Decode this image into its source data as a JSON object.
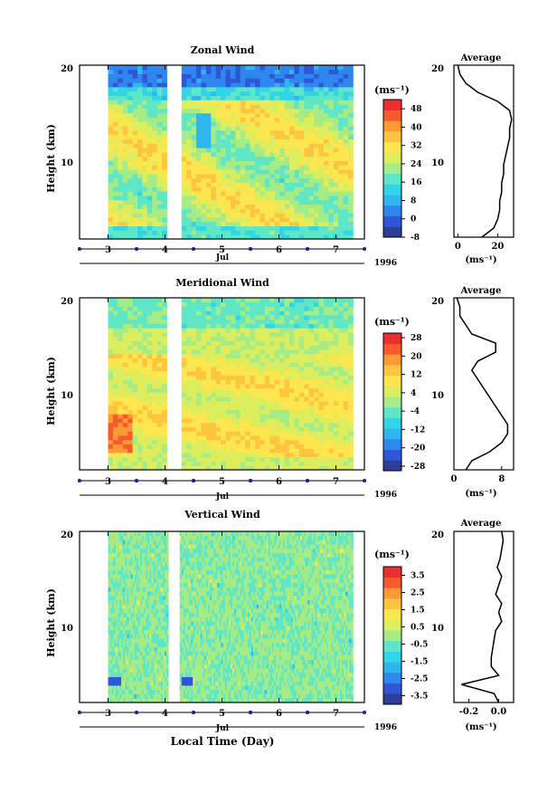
{
  "figure": {
    "xlabel": "Local Time (Day)",
    "month_label": "Jul",
    "year_label": "1996",
    "unit_label": "(ms⁻¹)",
    "ylabel": "Height (km)",
    "average_title": "Average",
    "average_unit": "(ms⁻¹)"
  },
  "colors": {
    "scale": [
      "#2e3e96",
      "#2f56d6",
      "#2f86ee",
      "#30b6ee",
      "#30d6e6",
      "#5fe6c6",
      "#a6ec86",
      "#dcee5e",
      "#fee64e",
      "#fec640",
      "#fe9a34",
      "#f85a2e",
      "#ee2e2e"
    ],
    "gap": "#ffffff",
    "contour": "#000000",
    "marker": "#1a1ab0"
  },
  "chart_data": [
    {
      "type": "heatmap",
      "title": "Zonal Wind",
      "ylabel": "Height (km)",
      "xlabel": "",
      "x_ticks": [
        "3",
        "4",
        "5",
        "6",
        "7"
      ],
      "y_ticks": [
        "10",
        "20"
      ],
      "x_range": [
        2.5,
        7.5
      ],
      "y_range": [
        1,
        20
      ],
      "data_x_range": [
        3.0,
        7.3
      ],
      "data_gap": [
        4.05,
        4.25
      ],
      "colorbar": {
        "labels": [
          "48",
          "40",
          "32",
          "24",
          "16",
          "8",
          "0",
          "-8"
        ],
        "range": [
          -8,
          52
        ]
      },
      "average": {
        "title": "Average",
        "xlabel": "(ms⁻¹)",
        "x_ticks": [
          "0",
          "20"
        ],
        "xlim": [
          -2,
          28
        ],
        "heights": [
          1,
          2,
          3,
          4,
          5,
          6,
          7,
          8,
          9,
          10,
          11,
          12,
          13,
          14,
          15,
          16,
          17,
          18,
          19,
          20
        ],
        "values": [
          12,
          18,
          20,
          21,
          21,
          22,
          22,
          23,
          23,
          24,
          25,
          26,
          26,
          27,
          26,
          20,
          10,
          4,
          1,
          0
        ]
      }
    },
    {
      "type": "heatmap",
      "title": "Meridional Wind",
      "ylabel": "Height (km)",
      "xlabel": "",
      "x_ticks": [
        "3",
        "4",
        "5",
        "6",
        "7"
      ],
      "y_ticks": [
        "10",
        "20"
      ],
      "x_range": [
        2.5,
        7.5
      ],
      "y_range": [
        1,
        20
      ],
      "data_x_range": [
        3.0,
        7.3
      ],
      "data_gap": [
        4.05,
        4.25
      ],
      "colorbar": {
        "labels": [
          "28",
          "20",
          "12",
          "4",
          "-4",
          "-12",
          "-20",
          "-28"
        ],
        "range": [
          -30,
          30
        ]
      },
      "average": {
        "title": "Average",
        "xlabel": "(ms⁻¹)",
        "x_ticks": [
          "0",
          "8"
        ],
        "xlim": [
          0,
          10
        ],
        "heights": [
          1,
          2,
          3,
          4,
          5,
          6,
          7,
          8,
          9,
          10,
          11,
          12,
          13,
          14,
          15,
          16,
          17,
          18,
          19,
          20
        ],
        "values": [
          2,
          3,
          6,
          8,
          9,
          9,
          8,
          7,
          6,
          5,
          4,
          3,
          4,
          7,
          7,
          3,
          2,
          1,
          1,
          0.5
        ]
      }
    },
    {
      "type": "heatmap",
      "title": "Vertical Wind",
      "ylabel": "Height (km)",
      "xlabel": "Local Time (Day)",
      "x_ticks": [
        "3",
        "4",
        "5",
        "6",
        "7"
      ],
      "y_ticks": [
        "10",
        "20"
      ],
      "x_range": [
        2.5,
        7.5
      ],
      "y_range": [
        1,
        20
      ],
      "data_x_range": [
        3.0,
        7.3
      ],
      "data_gap": [
        4.05,
        4.25
      ],
      "colorbar": {
        "labels": [
          "3.5",
          "2.5",
          "1.5",
          "0.5",
          "-0.5",
          "-1.5",
          "-2.5",
          "-3.5"
        ],
        "range": [
          -4,
          4
        ]
      },
      "average": {
        "title": "Average",
        "xlabel": "(ms⁻¹)",
        "x_ticks": [
          "-0.2",
          "0.0"
        ],
        "xlim": [
          -0.3,
          0.1
        ],
        "heights": [
          1,
          2,
          3,
          4,
          5,
          6,
          7,
          8,
          9,
          10,
          11,
          12,
          13,
          14,
          15,
          16,
          17,
          18,
          19,
          20
        ],
        "values": [
          0.0,
          -0.03,
          -0.25,
          0.0,
          -0.05,
          -0.05,
          -0.04,
          -0.03,
          -0.02,
          0.02,
          0.0,
          0.02,
          -0.02,
          0.0,
          0.02,
          -0.01,
          0.01,
          0.02,
          0.03,
          0.02
        ]
      }
    }
  ]
}
